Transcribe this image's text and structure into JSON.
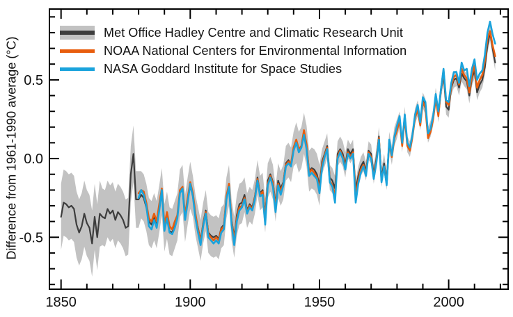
{
  "window": {
    "background": "#ffffff",
    "frame_color": "#000000"
  },
  "chart": {
    "ylabel": "Difference from 1961-1990 average (°C)",
    "xtick_labels": [
      {
        "year": 1850,
        "label": "1850"
      },
      {
        "year": 1900,
        "label": "1900"
      },
      {
        "year": 1950,
        "label": "1950"
      },
      {
        "year": 2000,
        "label": "2000"
      }
    ],
    "ytick_labels": [
      {
        "value": -0.5,
        "label": "-0.5"
      },
      {
        "value": 0.0,
        "label": "0.0"
      },
      {
        "value": 0.5,
        "label": "0.5"
      }
    ],
    "x_minor": {
      "from": 1850,
      "to": 2020,
      "step": 10
    },
    "y_minor": {
      "from": -0.8,
      "to": 0.9,
      "step": 0.1
    },
    "axis_color": "#000000",
    "tick_label_color": "#111111"
  },
  "legend": {
    "items": [
      {
        "id": "hadcrut",
        "label": "Met Office Hadley Centre and Climatic Research Unit",
        "swatch": "band",
        "line_color": "#3d3d3d",
        "band_color": "#c2c2c2"
      },
      {
        "id": "noaa",
        "label": "NOAA National Centers for Environmental Information",
        "swatch": "bar",
        "line_color": "#e85d0d"
      },
      {
        "id": "nasa",
        "label": "NASA Goddard Institute for Space Studies",
        "swatch": "bar",
        "line_color": "#1aa3dc"
      }
    ]
  },
  "chart_data": {
    "type": "line",
    "xlabel": "",
    "ylabel": "Difference from 1961-1990 average (°C)",
    "xlim": [
      1845.5,
      2023
    ],
    "ylim": [
      -0.83,
      0.95
    ],
    "grid": false,
    "legend_position": "top-left",
    "series": [
      {
        "name": "Met Office Hadley Centre and Climatic Research Unit",
        "color": "#3d3d3d",
        "line_width": 2.2,
        "start_year": 1850,
        "end_year": 2018,
        "band_color": "#c2c2c2",
        "band_halfwidth_by_period": [
          [
            1850,
            1865,
            0.21
          ],
          [
            1866,
            1880,
            0.18
          ],
          [
            1881,
            1900,
            0.15
          ],
          [
            1901,
            1920,
            0.13
          ],
          [
            1921,
            1940,
            0.11
          ],
          [
            1941,
            1950,
            0.13
          ],
          [
            1951,
            1960,
            0.08
          ],
          [
            1961,
            1980,
            0.06
          ],
          [
            1981,
            2018,
            0.05
          ]
        ],
        "values": [
          -0.37,
          -0.28,
          -0.29,
          -0.31,
          -0.3,
          -0.32,
          -0.42,
          -0.47,
          -0.43,
          -0.35,
          -0.41,
          -0.44,
          -0.54,
          -0.37,
          -0.5,
          -0.35,
          -0.37,
          -0.38,
          -0.32,
          -0.35,
          -0.33,
          -0.39,
          -0.34,
          -0.36,
          -0.39,
          -0.44,
          -0.43,
          -0.1,
          0.03,
          -0.26,
          -0.26,
          -0.23,
          -0.25,
          -0.31,
          -0.4,
          -0.42,
          -0.37,
          -0.42,
          -0.32,
          -0.21,
          -0.44,
          -0.36,
          -0.46,
          -0.47,
          -0.42,
          -0.37,
          -0.22,
          -0.19,
          -0.38,
          -0.27,
          -0.17,
          -0.24,
          -0.36,
          -0.44,
          -0.52,
          -0.41,
          -0.33,
          -0.47,
          -0.49,
          -0.5,
          -0.49,
          -0.51,
          -0.44,
          -0.42,
          -0.25,
          -0.17,
          -0.39,
          -0.5,
          -0.36,
          -0.29,
          -0.28,
          -0.23,
          -0.33,
          -0.29,
          -0.31,
          -0.24,
          -0.12,
          -0.22,
          -0.2,
          -0.36,
          -0.14,
          -0.1,
          -0.15,
          -0.29,
          -0.14,
          -0.19,
          -0.15,
          -0.03,
          -0.01,
          -0.04,
          0.06,
          0.1,
          0.04,
          0.07,
          0.16,
          0.08,
          -0.08,
          -0.06,
          -0.07,
          -0.1,
          -0.17,
          -0.02,
          0.03,
          0.08,
          -0.12,
          -0.14,
          -0.19,
          0.03,
          0.06,
          0.03,
          -0.04,
          0.06,
          0.03,
          0.06,
          -0.2,
          -0.11,
          -0.05,
          -0.02,
          -0.08,
          0.05,
          0.03,
          -0.1,
          0.0,
          0.14,
          -0.12,
          -0.03,
          -0.14,
          0.11,
          0.02,
          0.14,
          0.19,
          0.25,
          0.09,
          0.28,
          0.09,
          0.06,
          0.15,
          0.27,
          0.32,
          0.23,
          0.37,
          0.33,
          0.15,
          0.19,
          0.26,
          0.4,
          0.28,
          0.43,
          0.53,
          0.33,
          0.31,
          0.45,
          0.5,
          0.51,
          0.45,
          0.54,
          0.51,
          0.49,
          0.4,
          0.51,
          0.56,
          0.42,
          0.47,
          0.5,
          0.58,
          0.72,
          0.8,
          0.7,
          0.61
        ]
      },
      {
        "name": "NOAA National Centers for Environmental Information",
        "color": "#e85d0d",
        "line_width": 2.6,
        "start_year": 1880,
        "end_year": 2018,
        "values": [
          -0.22,
          -0.2,
          -0.21,
          -0.28,
          -0.38,
          -0.4,
          -0.35,
          -0.4,
          -0.29,
          -0.19,
          -0.42,
          -0.34,
          -0.43,
          -0.45,
          -0.4,
          -0.36,
          -0.2,
          -0.18,
          -0.36,
          -0.25,
          -0.15,
          -0.22,
          -0.35,
          -0.45,
          -0.53,
          -0.42,
          -0.34,
          -0.48,
          -0.5,
          -0.52,
          -0.5,
          -0.52,
          -0.45,
          -0.43,
          -0.24,
          -0.16,
          -0.4,
          -0.52,
          -0.38,
          -0.31,
          -0.3,
          -0.25,
          -0.34,
          -0.3,
          -0.32,
          -0.25,
          -0.13,
          -0.23,
          -0.21,
          -0.38,
          -0.16,
          -0.11,
          -0.16,
          -0.31,
          -0.16,
          -0.21,
          -0.16,
          -0.04,
          -0.02,
          -0.03,
          0.07,
          0.12,
          0.06,
          0.08,
          0.18,
          0.09,
          -0.09,
          -0.07,
          -0.09,
          -0.12,
          -0.2,
          -0.04,
          0.02,
          0.07,
          -0.14,
          -0.17,
          -0.24,
          0.01,
          0.05,
          0.01,
          -0.06,
          0.04,
          0.01,
          0.04,
          -0.24,
          -0.14,
          -0.07,
          -0.04,
          -0.1,
          0.04,
          0.01,
          -0.12,
          -0.02,
          0.13,
          -0.14,
          -0.05,
          -0.16,
          0.1,
          0.01,
          0.13,
          0.18,
          0.24,
          0.08,
          0.26,
          0.08,
          0.05,
          0.14,
          0.26,
          0.31,
          0.21,
          0.36,
          0.32,
          0.13,
          0.17,
          0.25,
          0.38,
          0.27,
          0.44,
          0.56,
          0.36,
          0.34,
          0.46,
          0.52,
          0.53,
          0.47,
          0.57,
          0.53,
          0.51,
          0.42,
          0.53,
          0.59,
          0.45,
          0.5,
          0.53,
          0.62,
          0.76,
          0.81,
          0.72,
          0.65
        ]
      },
      {
        "name": "NASA Goddard Institute for Space Studies",
        "color": "#1aa3dc",
        "line_width": 2.6,
        "start_year": 1880,
        "end_year": 2018,
        "values": [
          -0.25,
          -0.2,
          -0.23,
          -0.3,
          -0.43,
          -0.45,
          -0.39,
          -0.44,
          -0.33,
          -0.2,
          -0.46,
          -0.38,
          -0.47,
          -0.48,
          -0.44,
          -0.38,
          -0.22,
          -0.19,
          -0.39,
          -0.28,
          -0.16,
          -0.24,
          -0.38,
          -0.47,
          -0.55,
          -0.43,
          -0.35,
          -0.5,
          -0.52,
          -0.54,
          -0.52,
          -0.54,
          -0.47,
          -0.45,
          -0.26,
          -0.18,
          -0.42,
          -0.55,
          -0.4,
          -0.33,
          -0.31,
          -0.26,
          -0.35,
          -0.31,
          -0.33,
          -0.26,
          -0.14,
          -0.24,
          -0.23,
          -0.42,
          -0.17,
          -0.12,
          -0.18,
          -0.34,
          -0.17,
          -0.23,
          -0.17,
          -0.05,
          -0.03,
          -0.05,
          0.05,
          0.1,
          0.04,
          0.07,
          0.15,
          0.06,
          -0.11,
          -0.09,
          -0.11,
          -0.13,
          -0.22,
          -0.06,
          0.01,
          0.06,
          -0.15,
          -0.18,
          -0.28,
          0.0,
          0.04,
          0.0,
          -0.07,
          0.03,
          0.0,
          0.03,
          -0.28,
          -0.16,
          -0.09,
          -0.05,
          -0.11,
          0.03,
          0.0,
          -0.13,
          -0.03,
          0.12,
          -0.15,
          -0.05,
          -0.17,
          0.12,
          0.02,
          0.14,
          0.21,
          0.27,
          0.1,
          0.28,
          0.1,
          0.07,
          0.15,
          0.28,
          0.34,
          0.23,
          0.39,
          0.36,
          0.16,
          0.19,
          0.27,
          0.41,
          0.3,
          0.44,
          0.57,
          0.37,
          0.36,
          0.48,
          0.55,
          0.55,
          0.48,
          0.61,
          0.56,
          0.57,
          0.46,
          0.57,
          0.63,
          0.5,
          0.54,
          0.56,
          0.66,
          0.8,
          0.87,
          0.79,
          0.73
        ]
      }
    ]
  }
}
